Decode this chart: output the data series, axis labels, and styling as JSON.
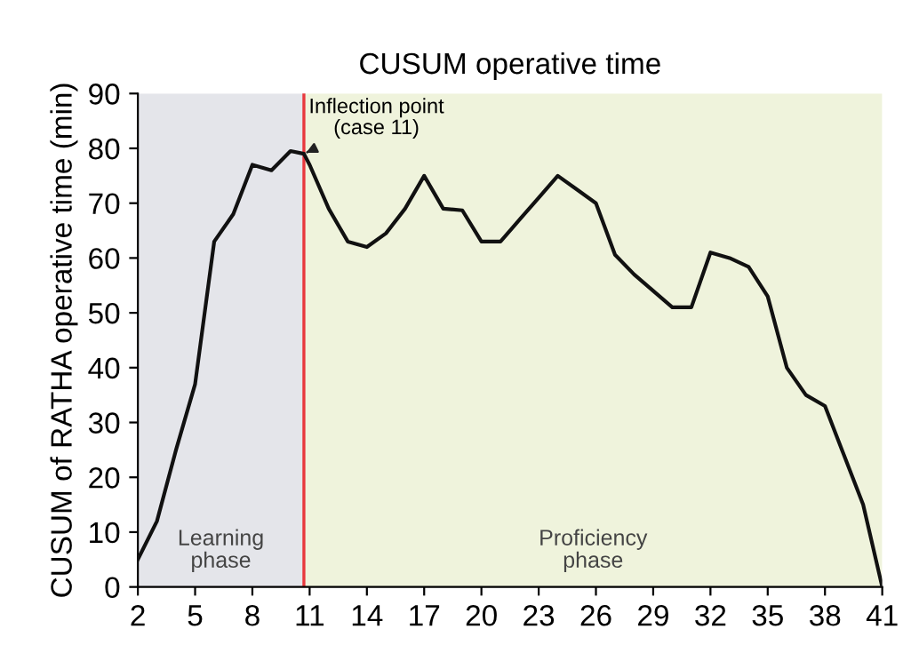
{
  "chart_data": {
    "type": "line",
    "title": "CUSUM operative time",
    "ylabel": "CUSUM of RATHA operative time (min)",
    "x": [
      2,
      3,
      4,
      5,
      6,
      7,
      8,
      9,
      10,
      10.7,
      11,
      12,
      13,
      14,
      15,
      16,
      17,
      18,
      19,
      20,
      21,
      22,
      23,
      24,
      25,
      26,
      27,
      28,
      29,
      30,
      31,
      32,
      33,
      34,
      35,
      36,
      37,
      38,
      39,
      40,
      41
    ],
    "series": [
      {
        "color": "#111111",
        "values": [
          5,
          12,
          25,
          37,
          63,
          68,
          77,
          76,
          79.5,
          79,
          77,
          69,
          63,
          62,
          64.5,
          69,
          75,
          69,
          68.7,
          63,
          63,
          67,
          71,
          75,
          72.5,
          70,
          60.6,
          57,
          54,
          51,
          51,
          61,
          60,
          58.4,
          53,
          40,
          35,
          33,
          24,
          15,
          0
        ]
      }
    ],
    "xlim": [
      2,
      41
    ],
    "ylim": [
      0,
      90
    ],
    "xticks": [
      2,
      5,
      8,
      11,
      14,
      17,
      20,
      23,
      26,
      29,
      32,
      35,
      38,
      41
    ],
    "yticks": [
      0,
      10,
      20,
      30,
      40,
      50,
      60,
      70,
      80,
      90
    ],
    "grid": false,
    "marker": "none",
    "line_style": "solid",
    "bands": [
      {
        "axis": "x",
        "from": 2,
        "to": 10.7,
        "label": "Learning\nphase",
        "color": "#e4e5ea"
      },
      {
        "axis": "x",
        "from": 10.7,
        "to": 41,
        "label": "Proficiency\nphase",
        "color": "#eff3dc"
      }
    ],
    "ref_lines": [
      {
        "axis": "x",
        "value": 10.7,
        "color": "#e8383d",
        "line_style": "solid"
      }
    ],
    "annotations": [
      {
        "text": "Inflection point\n(case 11)",
        "x": 10.7,
        "y": 79
      }
    ]
  }
}
